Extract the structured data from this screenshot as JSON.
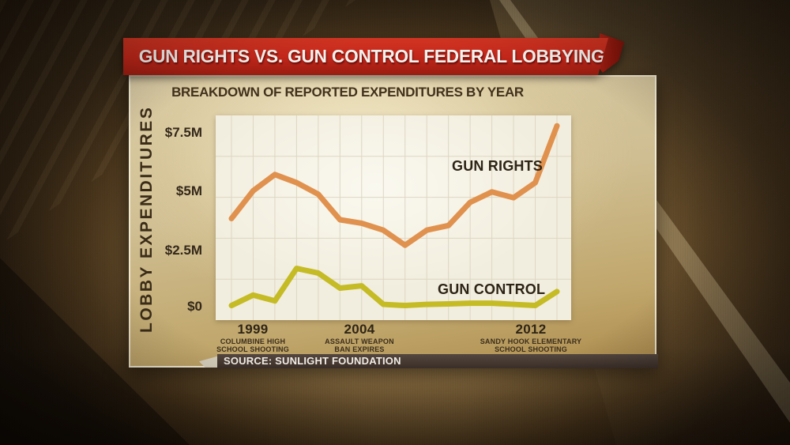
{
  "banner": {
    "title": "GUN RIGHTS VS. GUN CONTROL FEDERAL LOBBYING"
  },
  "subtitle": "BREAKDOWN OF REPORTED EXPENDITURES BY YEAR",
  "y_axis": {
    "title": "LOBBY EXPENDITURES",
    "ticks": [
      "$7.5M",
      "$5M",
      "$2.5M",
      "$0"
    ]
  },
  "x_axis": {
    "ticks": [
      {
        "year": "1999",
        "note1": "COLUMBINE HIGH",
        "note2": "SCHOOL SHOOTING"
      },
      {
        "year": "2004",
        "note1": "ASSAULT WEAPON",
        "note2": "BAN EXPIRES"
      },
      {
        "year": "2012",
        "note1": "SANDY HOOK ELEMENTARY",
        "note2": "SCHOOL SHOOTING"
      }
    ]
  },
  "series_labels": {
    "gun_rights": "GUN RIGHTS",
    "gun_control": "GUN CONTROL"
  },
  "source": {
    "label": "SOURCE: SUNLIGHT FOUNDATION"
  },
  "colors": {
    "banner_red": "#c1261a",
    "banner_fold_red": "#8f170d",
    "panel_tan": "#cfbe92",
    "plot_bg": "#f2eedf",
    "grid": "#ddd6c2",
    "gun_rights_orange": "#e0914e",
    "gun_control_yellow": "#c5bb25",
    "text_dark_brown": "#33281a",
    "source_bar_brown": "#453831"
  },
  "chart_data": {
    "type": "line",
    "x": [
      1998,
      1999,
      2000,
      2001,
      2002,
      2003,
      2004,
      2005,
      2006,
      2007,
      2008,
      2009,
      2010,
      2011,
      2012,
      2013
    ],
    "series": [
      {
        "name": "GUN RIGHTS",
        "color": "#e0914e",
        "values_millions": [
          3.8,
          5.0,
          5.7,
          5.35,
          4.85,
          3.75,
          3.6,
          3.3,
          2.65,
          3.3,
          3.5,
          4.5,
          4.95,
          4.7,
          5.35,
          7.8
        ]
      },
      {
        "name": "GUN CONTROL",
        "color": "#c5bb25",
        "values_millions": [
          0.05,
          0.5,
          0.25,
          1.65,
          1.45,
          0.8,
          0.9,
          0.1,
          0.05,
          0.1,
          0.12,
          0.15,
          0.15,
          0.1,
          0.05,
          0.65
        ]
      }
    ],
    "title": "BREAKDOWN OF REPORTED EXPENDITURES BY YEAR",
    "ylabel": "LOBBY EXPENDITURES",
    "unit": "USD millions",
    "ylim": [
      -0.6,
      8.25
    ],
    "ytick_values_millions": [
      0,
      2.5,
      5,
      7.5
    ],
    "xtick_years": [
      1999,
      2004,
      2012
    ],
    "grid": true,
    "legend": "inline-labels"
  }
}
